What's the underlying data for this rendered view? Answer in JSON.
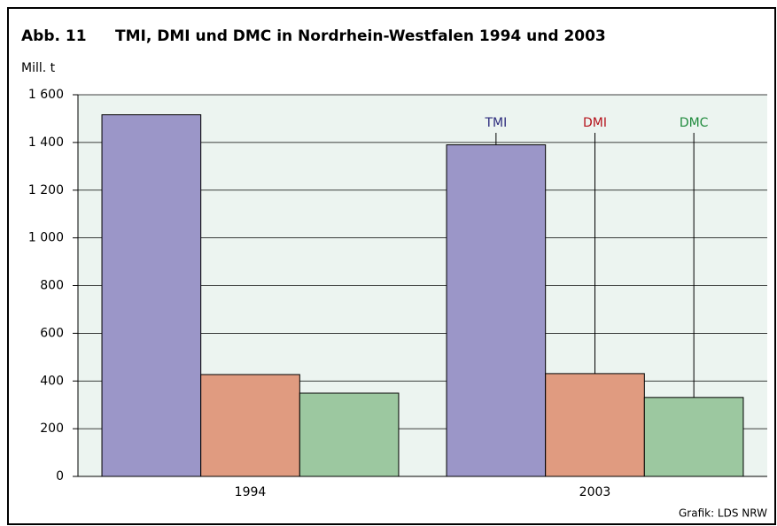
{
  "chart_data": {
    "type": "bar",
    "figure_label": "Abb. 11",
    "title": "TMI, DMI und DMC in Nordrhein-Westfalen 1994 und 2003",
    "y_label": "Mill. t",
    "source": "Grafik: LDS NRW",
    "categories": [
      "1994",
      "2003"
    ],
    "series": [
      {
        "name": "TMI",
        "color": "#9b96c8",
        "label_color": "#2b2a7c",
        "values": [
          1516,
          1390
        ]
      },
      {
        "name": "DMI",
        "color": "#e09b80",
        "label_color": "#b5121b",
        "values": [
          427,
          431
        ]
      },
      {
        "name": "DMC",
        "color": "#9cc8a0",
        "label_color": "#1f8a3c",
        "values": [
          349,
          331
        ]
      }
    ],
    "ylim": [
      0,
      1600
    ],
    "yticks": [
      0,
      200,
      400,
      600,
      800,
      {
        "value": 1000,
        "label": "1 000"
      },
      {
        "value": 1200,
        "label": "1 200"
      },
      {
        "value": 1400,
        "label": "1 400"
      },
      {
        "value": 1600,
        "label": "1 600"
      }
    ],
    "grid": true,
    "plot_background": "#ecf4f0"
  }
}
